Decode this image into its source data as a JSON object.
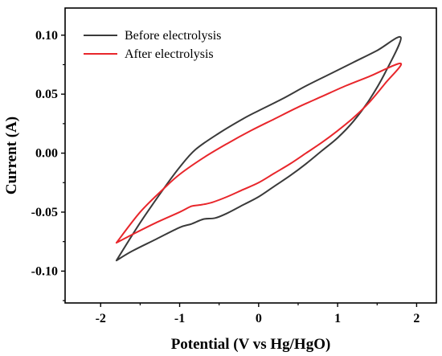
{
  "chart_data": {
    "type": "line",
    "title": "",
    "xlabel": "Potential (V vs Hg/HgO)",
    "ylabel": "Current (A)",
    "xlim": [
      -2.45,
      2.25
    ],
    "ylim": [
      -0.127,
      0.123
    ],
    "xticks": [
      -2,
      -1,
      0,
      1,
      2
    ],
    "xtick_labels": [
      "-2",
      "-1",
      "0",
      "1",
      "2"
    ],
    "yticks": [
      -0.1,
      -0.05,
      0.0,
      0.05,
      0.1
    ],
    "ytick_labels": [
      "-0.10",
      "-0.05",
      "0.00",
      "0.05",
      "0.10"
    ],
    "grid": false,
    "legend_position": "top-left",
    "series": [
      {
        "name": "Before electrolysis",
        "color": "#3a3a3a",
        "x": [
          -1.8,
          -1.5,
          -1.2,
          -1.0,
          -0.8,
          -0.5,
          -0.2,
          0.0,
          0.3,
          0.6,
          0.9,
          1.2,
          1.5,
          1.8,
          1.6,
          1.4,
          1.2,
          1.0,
          0.8,
          0.6,
          0.4,
          0.2,
          0.0,
          -0.2,
          -0.4,
          -0.55,
          -0.7,
          -0.85,
          -1.0,
          -1.3,
          -1.6,
          -1.8
        ],
        "y": [
          -0.091,
          -0.059,
          -0.03,
          -0.012,
          0.003,
          0.017,
          0.029,
          0.036,
          0.046,
          0.057,
          0.067,
          0.077,
          0.087,
          0.098,
          0.068,
          0.045,
          0.027,
          0.013,
          0.002,
          -0.009,
          -0.019,
          -0.028,
          -0.037,
          -0.044,
          -0.051,
          -0.055,
          -0.056,
          -0.06,
          -0.063,
          -0.073,
          -0.083,
          -0.091
        ]
      },
      {
        "name": "After electrolysis",
        "color": "#e8262b",
        "x": [
          -1.8,
          -1.5,
          -1.2,
          -1.0,
          -0.7,
          -0.4,
          -0.1,
          0.2,
          0.5,
          0.8,
          1.1,
          1.4,
          1.8,
          1.6,
          1.4,
          1.2,
          1.0,
          0.8,
          0.6,
          0.4,
          0.2,
          0.0,
          -0.2,
          -0.4,
          -0.6,
          -0.75,
          -0.85,
          -1.0,
          -1.3,
          -1.6,
          -1.8
        ],
        "y": [
          -0.076,
          -0.05,
          -0.03,
          -0.018,
          -0.004,
          0.008,
          0.019,
          0.029,
          0.039,
          0.048,
          0.057,
          0.065,
          0.076,
          0.059,
          0.043,
          0.03,
          0.019,
          0.009,
          0.0,
          -0.009,
          -0.017,
          -0.025,
          -0.031,
          -0.037,
          -0.042,
          -0.044,
          -0.045,
          -0.05,
          -0.059,
          -0.069,
          -0.076
        ]
      }
    ]
  }
}
